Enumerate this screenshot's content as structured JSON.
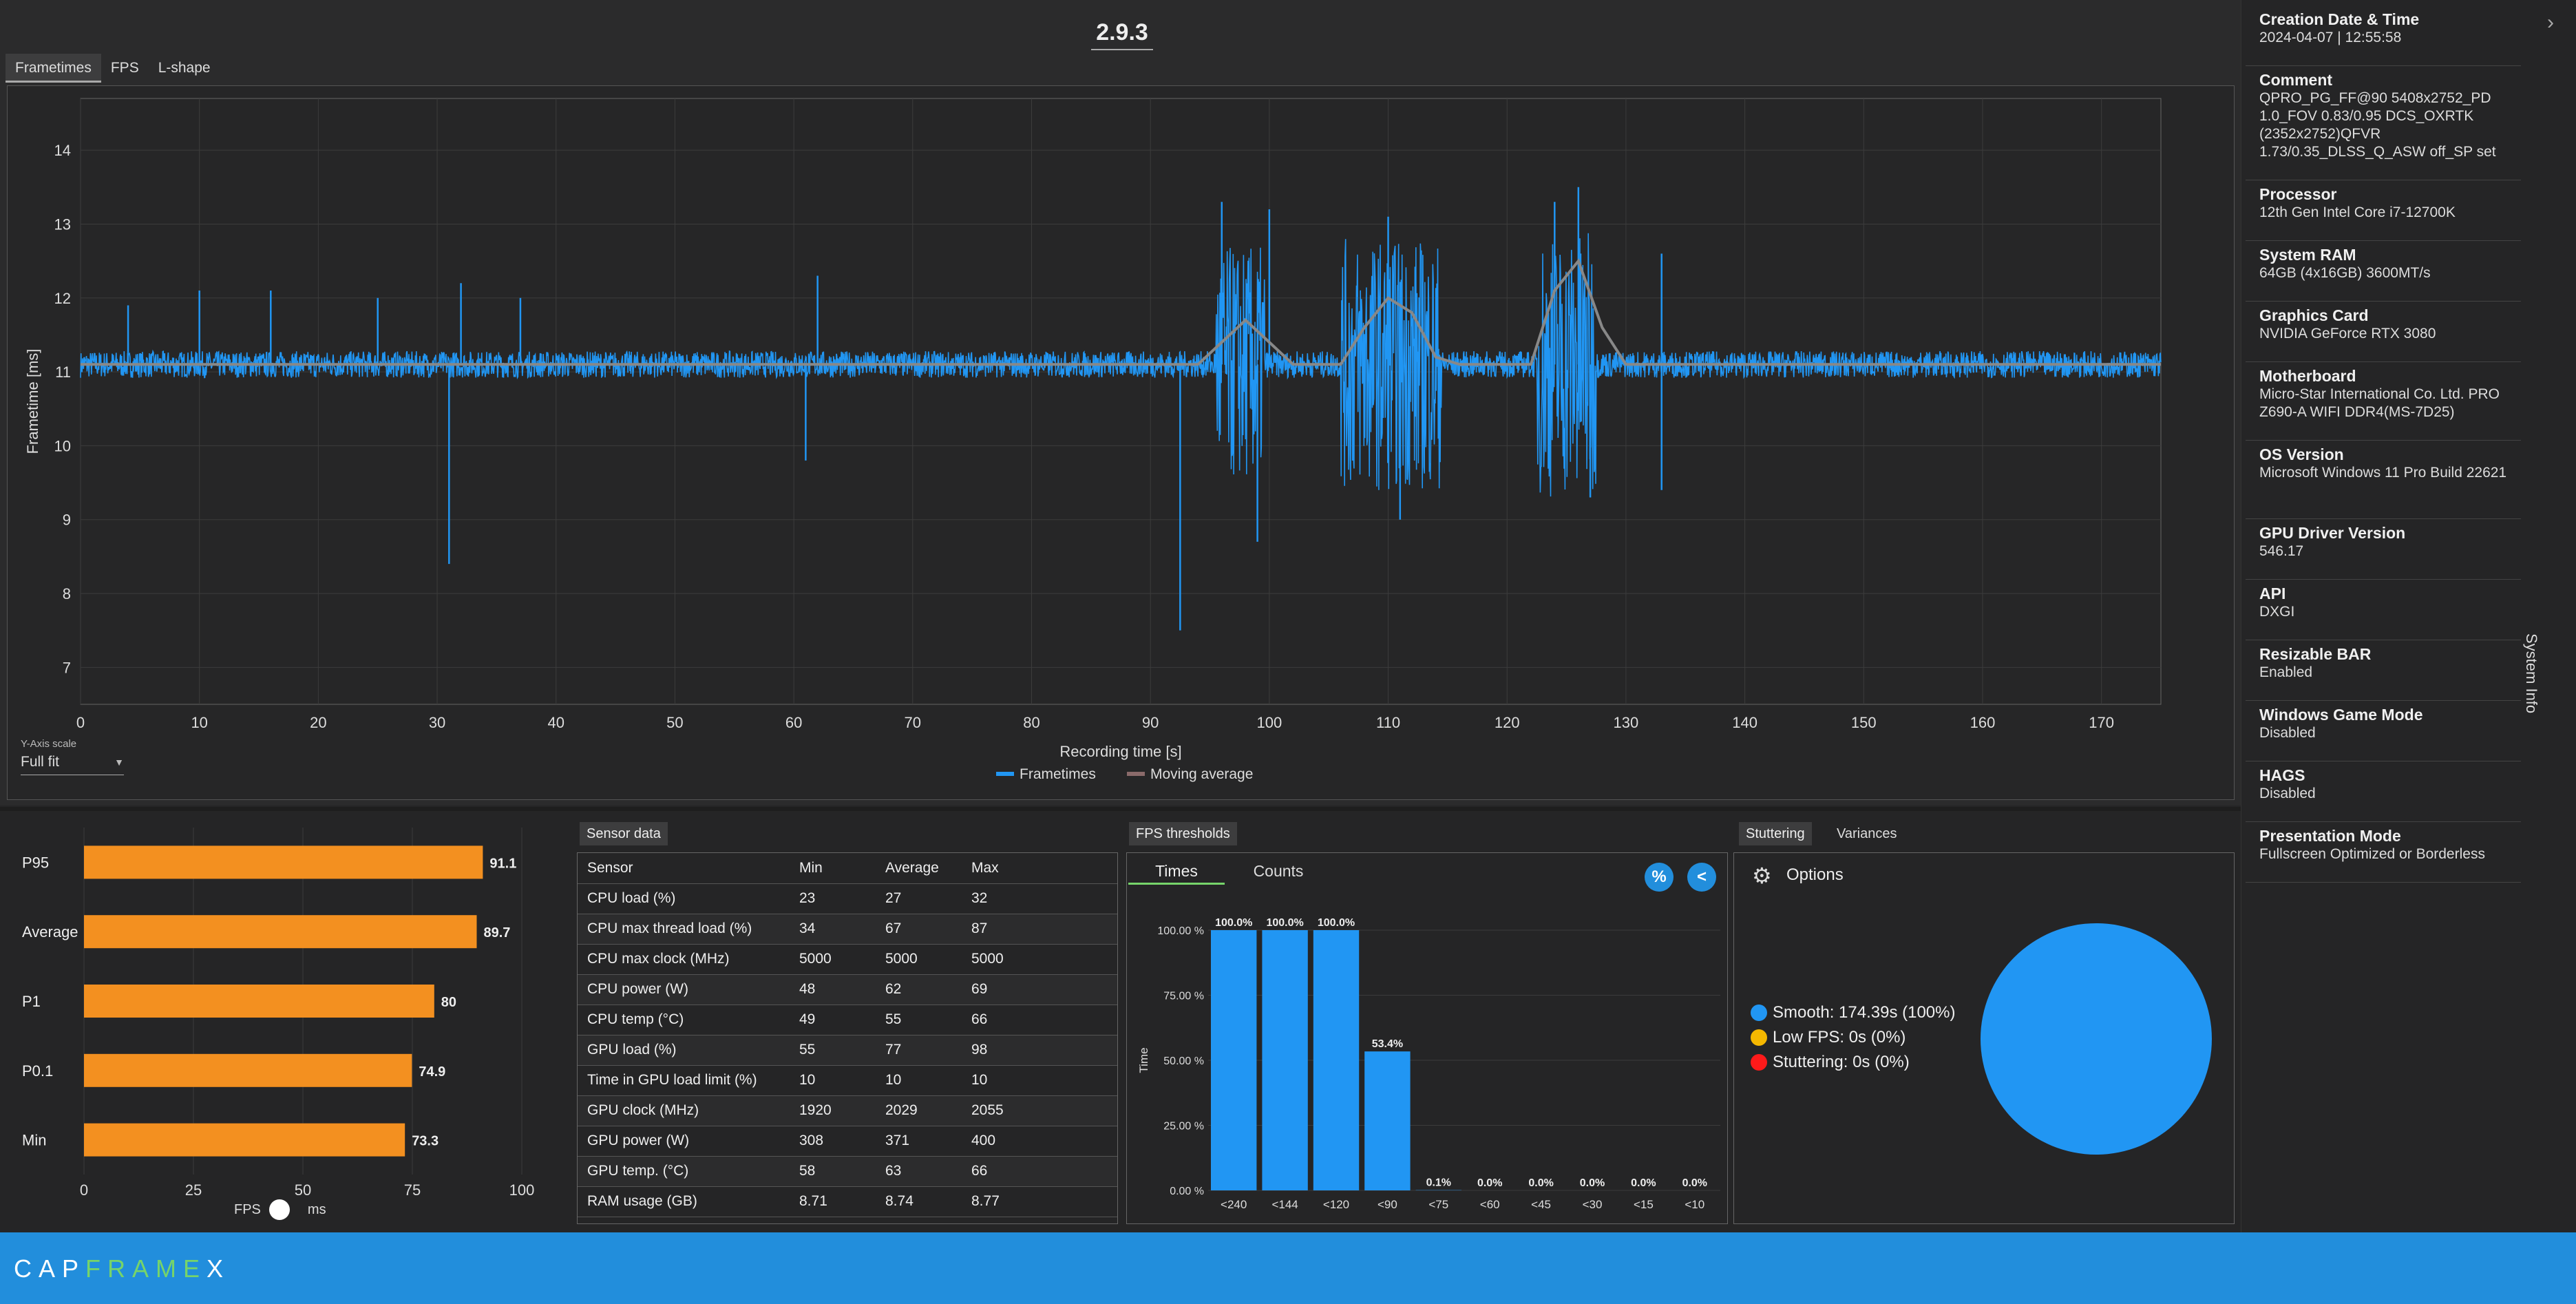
{
  "app": {
    "title": "2.9.3",
    "logo_a": "CAP",
    "logo_b": "FRAME",
    "logo_c": "X"
  },
  "top_tabs": [
    "Frametimes",
    "FPS",
    "L-shape"
  ],
  "frametime_chart": {
    "ylabel": "Frametime [ms]",
    "xlabel": "Recording time [s]",
    "yticks": [
      "7",
      "8",
      "9",
      "10",
      "11",
      "12",
      "13",
      "14"
    ],
    "xticks": [
      "0",
      "10",
      "20",
      "30",
      "40",
      "50",
      "60",
      "70",
      "80",
      "90",
      "100",
      "110",
      "120",
      "130",
      "140",
      "150",
      "160",
      "170"
    ],
    "legend": [
      "Frametimes",
      "Moving average"
    ],
    "colors": {
      "frametimes": "#2196f3",
      "moving_average": "#888888"
    }
  },
  "y_axis_scale": {
    "label": "Y-Axis scale",
    "value": "Full fit"
  },
  "chart_data": [
    {
      "type": "line",
      "xlabel": "Recording time [s]",
      "ylabel": "Frametime [ms]",
      "xlim": [
        0,
        175
      ],
      "ylim": [
        6.5,
        14.7
      ],
      "series": [
        {
          "name": "Frametimes",
          "baseline": 11.1,
          "spikes": [
            [
              4,
              11.9
            ],
            [
              10,
              12.1
            ],
            [
              16,
              12.1
            ],
            [
              25,
              12.0
            ],
            [
              31,
              8.4
            ],
            [
              32,
              12.2
            ],
            [
              37,
              12.0
            ],
            [
              62,
              12.3
            ],
            [
              61,
              9.8
            ],
            [
              92.5,
              7.5
            ],
            [
              96,
              13.3
            ],
            [
              99,
              8.7
            ],
            [
              100,
              13.2
            ],
            [
              110,
              13.1
            ],
            [
              111,
              9.0
            ],
            [
              124,
              13.3
            ],
            [
              126,
              13.5
            ],
            [
              127,
              9.3
            ],
            [
              133,
              9.4
            ],
            [
              133,
              12.6
            ]
          ]
        },
        {
          "name": "Moving average",
          "x": [
            0,
            94,
            96,
            98,
            100,
            102,
            106,
            108,
            110,
            112,
            114,
            116,
            122,
            124,
            126,
            128,
            130,
            175
          ],
          "y": [
            11.1,
            11.1,
            11.4,
            11.7,
            11.4,
            11.1,
            11.1,
            11.6,
            12.0,
            11.8,
            11.2,
            11.1,
            11.1,
            12.1,
            12.5,
            11.6,
            11.1,
            11.1
          ]
        }
      ]
    },
    {
      "type": "bar",
      "orientation": "horizontal",
      "categories": [
        "P95",
        "Average",
        "P1",
        "P0.1",
        "Min"
      ],
      "values": [
        91.1,
        89.7,
        80,
        74.9,
        73.3
      ],
      "xlim": [
        0,
        100
      ],
      "xticks": [
        "0",
        "25",
        "50",
        "75",
        "100"
      ],
      "color": "#f39020"
    },
    {
      "type": "bar",
      "categories": [
        "<240",
        "<144",
        "<120",
        "<90",
        "<75",
        "<60",
        "<45",
        "<30",
        "<15",
        "<10"
      ],
      "values": [
        100.0,
        100.0,
        100.0,
        53.4,
        0.1,
        0.0,
        0.0,
        0.0,
        0.0,
        0.0
      ],
      "labels": [
        "100.0%",
        "100.0%",
        "100.0%",
        "53.4%",
        "0.1%",
        "0.0%",
        "0.0%",
        "0.0%",
        "0.0%",
        "0.0%"
      ],
      "ylabel": "Time",
      "yticks": [
        "0.00 %",
        "25.00 %",
        "50.00 %",
        "75.00 %",
        "100.00 %"
      ],
      "ylim": [
        0,
        100
      ],
      "color": "#2196f3"
    },
    {
      "type": "pie",
      "slices": [
        {
          "name": "Smooth",
          "value": 100
        },
        {
          "name": "Low FPS",
          "value": 0
        },
        {
          "name": "Stuttering",
          "value": 0
        }
      ]
    }
  ],
  "hbar": {
    "categories": [
      "P95",
      "Average",
      "P1",
      "P0.1",
      "Min"
    ],
    "labels": [
      "91.1",
      "89.7",
      "80",
      "74.9",
      "73.3"
    ],
    "toggle_left": "FPS",
    "toggle_right": "ms"
  },
  "sensor": {
    "tab": "Sensor data",
    "headers": [
      "Sensor",
      "Min",
      "Average",
      "Max"
    ],
    "rows": [
      [
        "CPU load (%)",
        "23",
        "27",
        "32"
      ],
      [
        "CPU max thread load (%)",
        "34",
        "67",
        "87"
      ],
      [
        "CPU max clock (MHz)",
        "5000",
        "5000",
        "5000"
      ],
      [
        "CPU power (W)",
        "48",
        "62",
        "69"
      ],
      [
        "CPU temp (°C)",
        "49",
        "55",
        "66"
      ],
      [
        "GPU load (%)",
        "55",
        "77",
        "98"
      ],
      [
        "Time in GPU load limit (%)",
        "10",
        "10",
        "10"
      ],
      [
        "GPU clock (MHz)",
        "1920",
        "2029",
        "2055"
      ],
      [
        "GPU power (W)",
        "308",
        "371",
        "400"
      ],
      [
        "GPU temp. (°C)",
        "58",
        "63",
        "66"
      ],
      [
        "RAM usage (GB)",
        "8.71",
        "8.74",
        "8.77"
      ]
    ]
  },
  "fps_thresholds": {
    "tab": "FPS thresholds",
    "subtabs": [
      "Times",
      "Counts"
    ],
    "btn_percent": "%",
    "btn_share": "<"
  },
  "stuttering": {
    "tabs": [
      "Stuttering",
      "Variances"
    ],
    "options_label": "Options",
    "legend": [
      {
        "label": "Smooth:  174.39s (100%)",
        "color": "#2196f3"
      },
      {
        "label": "Low FPS:  0s (0%)",
        "color": "#f5b800"
      },
      {
        "label": "Stuttering:  0s (0%)",
        "color": "#ff1a1a"
      }
    ]
  },
  "system_info": {
    "vertical_label": "System Info",
    "items": [
      {
        "k": "Creation Date & Time",
        "v": "2024-04-07  |  12:55:58"
      },
      {
        "k": "Comment",
        "v": "QPRO_PG_FF@90 5408x2752_PD 1.0_FOV 0.83/0.95 DCS_OXRTK (2352x2752)QFVR 1.73/0.35_DLSS_Q_ASW off_SP set"
      },
      {
        "k": "Processor",
        "v": "12th Gen Intel Core i7-12700K"
      },
      {
        "k": "System RAM",
        "v": "64GB (4x16GB) 3600MT/s"
      },
      {
        "k": "Graphics Card",
        "v": "NVIDIA GeForce RTX 3080"
      },
      {
        "k": "Motherboard",
        "v": "Micro-Star International Co. Ltd. PRO Z690-A WIFI DDR4(MS-7D25)"
      },
      {
        "k": "OS Version",
        "v": "Microsoft Windows 11 Pro Build 22621"
      },
      {
        "k": "GPU Driver Version",
        "v": "546.17"
      },
      {
        "k": "API",
        "v": "DXGI"
      },
      {
        "k": "Resizable BAR",
        "v": "Enabled"
      },
      {
        "k": "Windows Game Mode",
        "v": "Disabled"
      },
      {
        "k": "HAGS",
        "v": "Disabled"
      },
      {
        "k": "Presentation Mode",
        "v": "Fullscreen Optimized or Borderless"
      }
    ]
  }
}
